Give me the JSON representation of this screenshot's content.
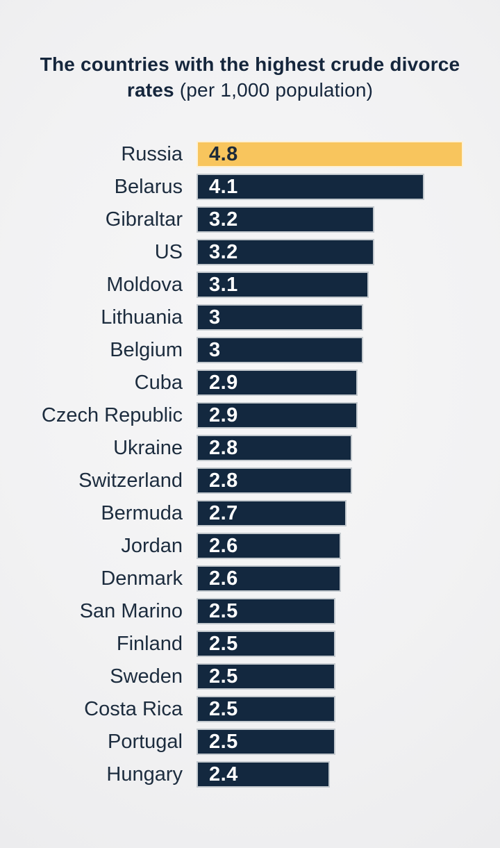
{
  "header": {
    "title_bold": "The countries with the highest crude divorce rates",
    "title_paren": "(per 1,000 population)"
  },
  "colors": {
    "background": "#F2F2F3",
    "bar_default": "#13283F",
    "bar_highlight": "#F8C55D",
    "value_text_on_default": "#FFFFFF",
    "value_text_on_highlight": "#1D2A39",
    "label_text": "#1C2C3E",
    "title_text": "#15263C",
    "bar_outline": "rgba(255,255,255,0.75)"
  },
  "chart_data": {
    "type": "bar",
    "orientation": "horizontal",
    "title": "The countries with the highest crude divorce rates (per 1,000 population)",
    "xlabel": "",
    "ylabel": "",
    "unit": "divorces per 1,000 population",
    "xlim": [
      0,
      4.8
    ],
    "grid": false,
    "legend": false,
    "value_labels": "inside-bar-left",
    "highlighted_category": "Russia",
    "categories": [
      "Russia",
      "Belarus",
      "Gibraltar",
      "US",
      "Moldova",
      "Lithuania",
      "Belgium",
      "Cuba",
      "Czech Republic",
      "Ukraine",
      "Switzerland",
      "Bermuda",
      "Jordan",
      "Denmark",
      "San Marino",
      "Finland",
      "Sweden",
      "Costa Rica",
      "Portugal",
      "Hungary"
    ],
    "values": [
      4.8,
      4.1,
      3.2,
      3.2,
      3.1,
      3,
      3,
      2.9,
      2.9,
      2.8,
      2.8,
      2.7,
      2.6,
      2.6,
      2.5,
      2.5,
      2.5,
      2.5,
      2.5,
      2.4
    ],
    "rows": [
      {
        "country": "Russia",
        "value": 4.8,
        "display": "4.8",
        "highlight": true
      },
      {
        "country": "Belarus",
        "value": 4.1,
        "display": "4.1",
        "highlight": false
      },
      {
        "country": "Gibraltar",
        "value": 3.2,
        "display": "3.2",
        "highlight": false
      },
      {
        "country": "US",
        "value": 3.2,
        "display": "3.2",
        "highlight": false
      },
      {
        "country": "Moldova",
        "value": 3.1,
        "display": "3.1",
        "highlight": false
      },
      {
        "country": "Lithuania",
        "value": 3,
        "display": "3",
        "highlight": false
      },
      {
        "country": "Belgium",
        "value": 3,
        "display": "3",
        "highlight": false
      },
      {
        "country": "Cuba",
        "value": 2.9,
        "display": "2.9",
        "highlight": false
      },
      {
        "country": "Czech Republic",
        "value": 2.9,
        "display": "2.9",
        "highlight": false
      },
      {
        "country": "Ukraine",
        "value": 2.8,
        "display": "2.8",
        "highlight": false
      },
      {
        "country": "Switzerland",
        "value": 2.8,
        "display": "2.8",
        "highlight": false
      },
      {
        "country": "Bermuda",
        "value": 2.7,
        "display": "2.7",
        "highlight": false
      },
      {
        "country": "Jordan",
        "value": 2.6,
        "display": "2.6",
        "highlight": false
      },
      {
        "country": "Denmark",
        "value": 2.6,
        "display": "2.6",
        "highlight": false
      },
      {
        "country": "San Marino",
        "value": 2.5,
        "display": "2.5",
        "highlight": false
      },
      {
        "country": "Finland",
        "value": 2.5,
        "display": "2.5",
        "highlight": false
      },
      {
        "country": "Sweden",
        "value": 2.5,
        "display": "2.5",
        "highlight": false
      },
      {
        "country": "Costa Rica",
        "value": 2.5,
        "display": "2.5",
        "highlight": false
      },
      {
        "country": "Portugal",
        "value": 2.5,
        "display": "2.5",
        "highlight": false
      },
      {
        "country": "Hungary",
        "value": 2.4,
        "display": "2.4",
        "highlight": false
      }
    ]
  }
}
